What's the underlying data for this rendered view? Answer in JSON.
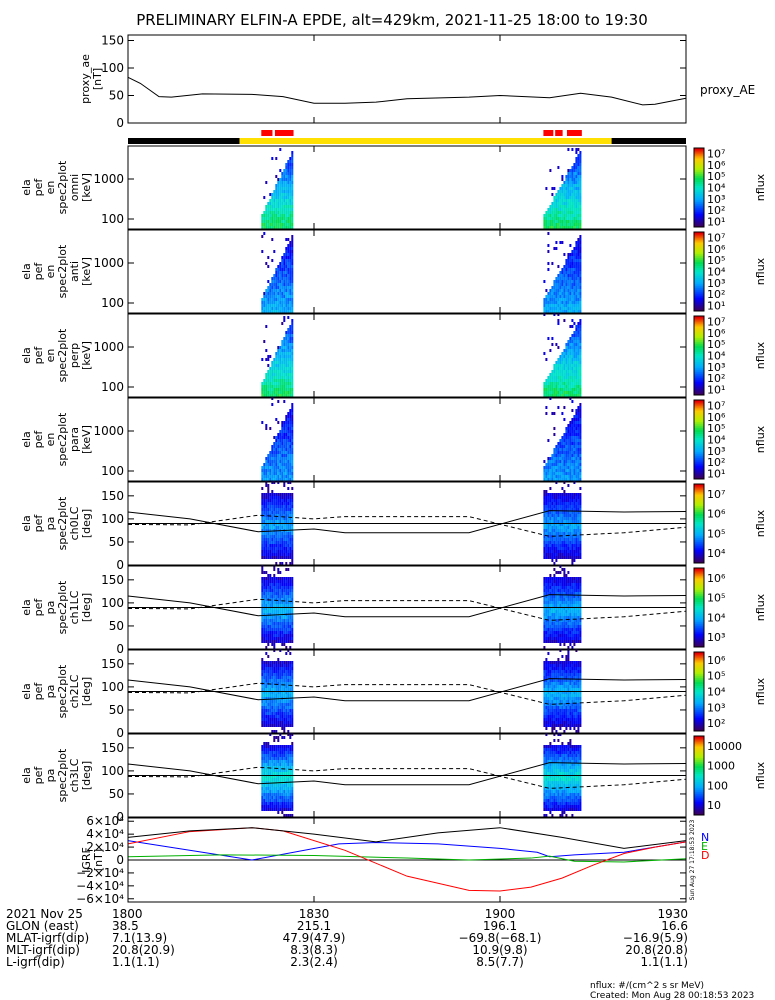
{
  "title": "PRELIMINARY ELFIN-A EPDE, alt=429km, 2021-11-25 18:00 to 19:30",
  "chart_data": [
    {
      "type": "line",
      "panel": "proxy_ae",
      "ylabel": [
        "proxy_ae",
        "[nT]"
      ],
      "y_ticks": [
        "0",
        "50",
        "100",
        "150"
      ],
      "ylim": [
        0,
        160
      ],
      "xlim_minutes": [
        0,
        90
      ],
      "x_minutes": [
        0,
        2,
        5,
        7,
        12,
        20,
        25,
        30,
        35,
        40,
        45,
        55,
        60,
        68,
        73,
        78,
        83,
        85,
        90
      ],
      "y": [
        83,
        72,
        48,
        47,
        53,
        52,
        48,
        36,
        36,
        38,
        44,
        47,
        50,
        46,
        54,
        47,
        33,
        34,
        45
      ],
      "series_label": "proxy_AE"
    },
    {
      "type": "heatmap",
      "panel": "spec2plot_en_omni",
      "ylabel": [
        "ela",
        "pef",
        "en",
        "spec2plot",
        "omni",
        "[keV]"
      ],
      "y_ticks": [
        "100",
        "1000"
      ],
      "colorbar": {
        "label": "nflux",
        "ticks": [
          "10¹",
          "10²",
          "10³",
          "10⁴",
          "10⁵",
          "10⁶",
          "10⁷"
        ],
        "range": "10^1 to 10^7"
      }
    },
    {
      "type": "heatmap",
      "panel": "spec2plot_en_anti",
      "ylabel": [
        "ela",
        "pef",
        "en",
        "spec2plot",
        "anti",
        "[keV]"
      ],
      "y_ticks": [
        "100",
        "1000"
      ],
      "colorbar": {
        "label": "nflux",
        "ticks": [
          "10¹",
          "10²",
          "10³",
          "10⁴",
          "10⁵",
          "10⁶",
          "10⁷"
        ],
        "range": "10^1 to 10^7"
      }
    },
    {
      "type": "heatmap",
      "panel": "spec2plot_en_perp",
      "ylabel": [
        "ela",
        "pef",
        "en",
        "spec2plot",
        "perp",
        "[keV]"
      ],
      "y_ticks": [
        "100",
        "1000"
      ],
      "colorbar": {
        "label": "nflux",
        "ticks": [
          "10¹",
          "10²",
          "10³",
          "10⁴",
          "10⁵",
          "10⁶",
          "10⁷"
        ],
        "range": "10^1 to 10^7"
      }
    },
    {
      "type": "heatmap",
      "panel": "spec2plot_en_para",
      "ylabel": [
        "ela",
        "pef",
        "en",
        "spec2plot",
        "para",
        "[keV]"
      ],
      "y_ticks": [
        "100",
        "1000"
      ],
      "colorbar": {
        "label": "nflux",
        "ticks": [
          "10¹",
          "10²",
          "10³",
          "10⁴",
          "10⁵",
          "10⁶",
          "10⁷"
        ],
        "range": "10^1 to 10^7"
      }
    },
    {
      "type": "heatmap",
      "panel": "spec2plot_ch0LC",
      "ylabel": [
        "ela",
        "pef",
        "pa",
        "spec2plot",
        "ch0LC",
        "[deg]"
      ],
      "y_ticks": [
        "0",
        "50",
        "100",
        "150"
      ],
      "ylim": [
        0,
        180
      ],
      "colorbar": {
        "label": "nflux",
        "ticks": [
          "10⁴",
          "10⁵",
          "10⁶",
          "10⁷"
        ],
        "range": "10^3.5 to 10^7"
      }
    },
    {
      "type": "heatmap",
      "panel": "spec2plot_ch1LC",
      "ylabel": [
        "ela",
        "pef",
        "pa",
        "spec2plot",
        "ch1LC",
        "[deg]"
      ],
      "y_ticks": [
        "0",
        "50",
        "100",
        "150"
      ],
      "ylim": [
        0,
        180
      ],
      "colorbar": {
        "label": "nflux",
        "ticks": [
          "10³",
          "10⁴",
          "10⁵",
          "10⁶"
        ],
        "range": "10^2.7 to 10^6.5"
      }
    },
    {
      "type": "heatmap",
      "panel": "spec2plot_ch2LC",
      "ylabel": [
        "ela",
        "pef",
        "pa",
        "spec2plot",
        "ch2LC",
        "[deg]"
      ],
      "y_ticks": [
        "0",
        "50",
        "100",
        "150"
      ],
      "ylim": [
        0,
        180
      ],
      "colorbar": {
        "label": "nflux",
        "ticks": [
          "10²",
          "10³",
          "10⁴",
          "10⁵",
          "10⁶"
        ],
        "range": "10^1.8 to 10^6.2"
      }
    },
    {
      "type": "heatmap",
      "panel": "spec2plot_ch3LC",
      "ylabel": [
        "ela",
        "pef",
        "pa",
        "spec2plot",
        "ch3LC",
        "[deg]"
      ],
      "y_ticks": [
        "0",
        "50",
        "100",
        "150"
      ],
      "ylim": [
        0,
        180
      ],
      "colorbar": {
        "label": "nflux",
        "ticks": [
          "10",
          "100",
          "1000",
          "10000"
        ],
        "range": "10 to 10000"
      }
    },
    {
      "type": "line",
      "panel": "IGRF",
      "ylabel": [
        "IGRF",
        "[nT]"
      ],
      "y_ticks": [
        "−6×10⁴",
        "−4×10⁴",
        "−2×10⁴",
        "0",
        "2×10⁴",
        "4×10⁴",
        "6×10⁴"
      ],
      "ylim": [
        -65000,
        65000
      ],
      "legend": [
        "N",
        "E",
        "D"
      ],
      "series": [
        {
          "name": "N",
          "color": "#0000ff",
          "x_minutes": [
            0,
            8,
            20,
            34,
            40,
            50,
            60,
            66,
            68,
            72,
            80,
            90
          ],
          "y": [
            30000,
            18000,
            0,
            25000,
            27000,
            25000,
            18000,
            12000,
            5000,
            8000,
            12000,
            28000
          ]
        },
        {
          "name": "E",
          "color": "#00b000",
          "x_minutes": [
            0,
            15,
            30,
            45,
            55,
            65,
            68,
            72,
            80,
            90
          ],
          "y": [
            5000,
            8000,
            7000,
            3000,
            0,
            3000,
            6000,
            -2000,
            -3000,
            2000
          ]
        },
        {
          "name": "D",
          "color": "#ff0000",
          "x_minutes": [
            0,
            10,
            20,
            25,
            35,
            45,
            55,
            60,
            65,
            70,
            75,
            80,
            85,
            90
          ],
          "y": [
            25000,
            44000,
            50000,
            45000,
            15000,
            -25000,
            -47000,
            -48000,
            -42000,
            -28000,
            -8000,
            10000,
            20000,
            28000
          ]
        },
        {
          "name": "total",
          "color": "#000000",
          "x_minutes": [
            0,
            10,
            20,
            30,
            40,
            50,
            60,
            70,
            80,
            90
          ],
          "y": [
            35000,
            45000,
            50000,
            40000,
            28000,
            42000,
            50000,
            35000,
            18000,
            30000
          ]
        }
      ],
      "side_text": "Sun Aug 27 17:18:53 2023"
    }
  ],
  "state_bar": {
    "segments_minutes": [
      [
        0,
        18,
        "#000000"
      ],
      [
        18,
        78,
        "#ffe000"
      ],
      [
        78,
        90,
        "#000000"
      ]
    ],
    "red_marks_minutes": [
      [
        21.5,
        23.3
      ],
      [
        23.7,
        26.7
      ],
      [
        67.0,
        68.6
      ],
      [
        68.9,
        70.1
      ],
      [
        70.8,
        73.2
      ]
    ]
  },
  "x_axis": {
    "tick_labels": [
      "1800",
      "1830",
      "1900",
      "1930"
    ],
    "tick_minutes": [
      0,
      30,
      60,
      90
    ]
  },
  "ephemeris": [
    {
      "label": "2021 Nov 25",
      "values": [
        "1800",
        "1830",
        "1900",
        "1930"
      ]
    },
    {
      "label": "GLON (east)",
      "values": [
        "38.5",
        "215.1",
        "196.1",
        "16.6"
      ]
    },
    {
      "label": "MLAT-igrf(dip)",
      "values": [
        "7.1(13.9)",
        "47.9(47.9)",
        "−69.8(−68.1)",
        "−16.9(5.9)"
      ]
    },
    {
      "label": "MLT-igrf(dip)",
      "values": [
        "20.8(20.9)",
        "8.3(8.3)",
        "10.9(9.8)",
        "20.8(20.8)"
      ]
    },
    {
      "label": "L-igrf(dip)",
      "values": [
        "1.1(1.1)",
        "2.3(2.4)",
        "8.5(7.7)",
        "1.1(1.1)"
      ]
    }
  ],
  "footer": {
    "units": "nflux: #/(cm^2 s sr MeV)",
    "created": "Created: Mon Aug 28 00:18:53 2023"
  }
}
